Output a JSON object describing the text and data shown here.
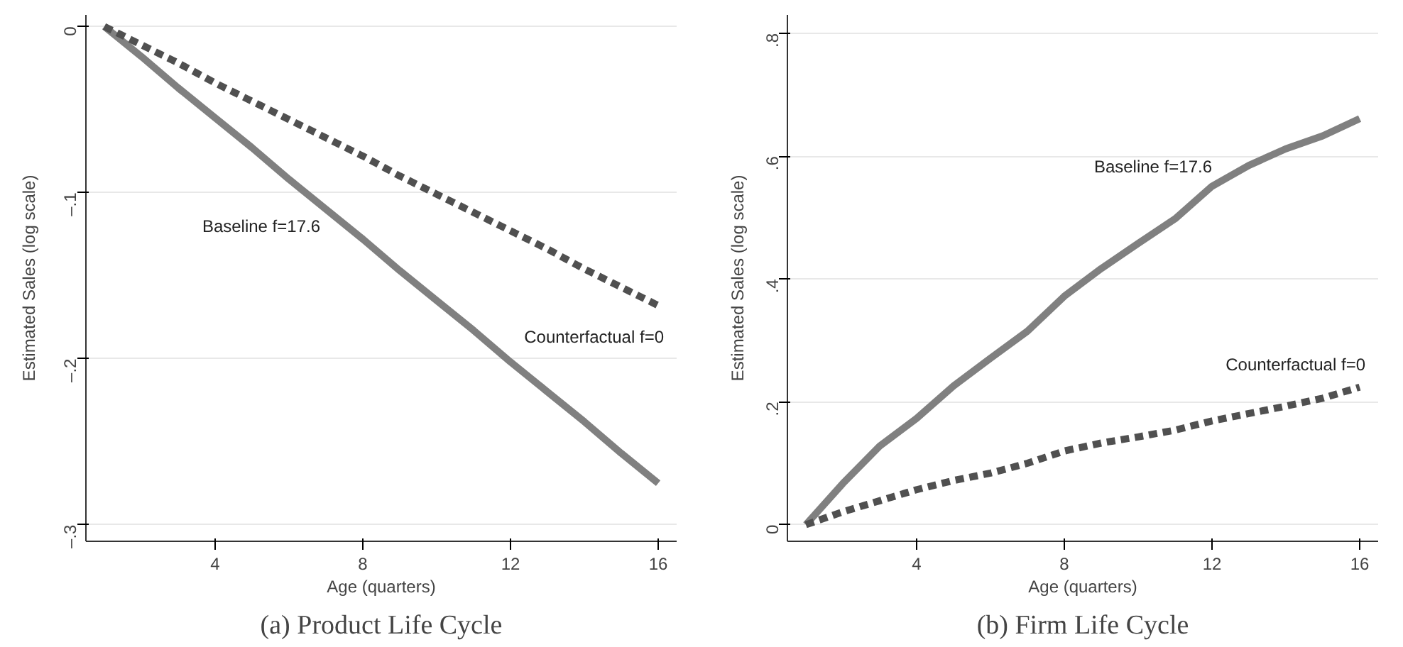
{
  "chart_data": [
    {
      "type": "line",
      "title": "(a) Product Life Cycle",
      "xlabel": "Age (quarters)",
      "ylabel": "Estimated Sales (log scale)",
      "x": [
        1,
        2,
        3,
        4,
        5,
        6,
        7,
        8,
        9,
        10,
        11,
        12,
        13,
        14,
        15,
        16
      ],
      "series": [
        {
          "name": "Baseline f=17.6",
          "color": "#808080",
          "line_style": "solid",
          "values": [
            0,
            -0.018,
            -0.037,
            -0.055,
            -0.073,
            -0.092,
            -0.11,
            -0.128,
            -0.147,
            -0.165,
            -0.183,
            -0.202,
            -0.22,
            -0.238,
            -0.257,
            -0.275
          ]
        },
        {
          "name": "Counterfactual f=0",
          "color": "#505050",
          "line_style": "dashed",
          "values": [
            0,
            -0.011,
            -0.022,
            -0.034,
            -0.045,
            -0.056,
            -0.067,
            -0.078,
            -0.09,
            -0.101,
            -0.112,
            -0.123,
            -0.134,
            -0.146,
            -0.157,
            -0.168
          ]
        }
      ],
      "xlim": [
        0.5,
        16.5
      ],
      "xticks": [
        4,
        8,
        12,
        16
      ],
      "ylim": [
        -0.31,
        0.007
      ],
      "yticks": [
        {
          "value": 0,
          "label": "0"
        },
        {
          "value": -0.1,
          "label": "–.1"
        },
        {
          "value": -0.2,
          "label": "–.2"
        },
        {
          "value": -0.3,
          "label": "–.3"
        }
      ],
      "grid": "y",
      "legend": false
    },
    {
      "type": "line",
      "title": "(b) Firm Life Cycle",
      "xlabel": "Age (quarters)",
      "ylabel": "Estimated Sales (log scale)",
      "x": [
        1,
        2,
        3,
        4,
        5,
        6,
        7,
        8,
        9,
        10,
        11,
        12,
        13,
        14,
        15,
        16
      ],
      "series": [
        {
          "name": "Baseline f=17.6",
          "color": "#808080",
          "line_style": "solid",
          "values": [
            0,
            0.067,
            0.128,
            0.173,
            0.226,
            0.271,
            0.315,
            0.372,
            0.417,
            0.458,
            0.498,
            0.551,
            0.585,
            0.612,
            0.633,
            0.661
          ]
        },
        {
          "name": "Counterfactual f=0",
          "color": "#505050",
          "line_style": "dashed",
          "values": [
            0,
            0.021,
            0.039,
            0.057,
            0.072,
            0.084,
            0.1,
            0.12,
            0.133,
            0.143,
            0.154,
            0.169,
            0.181,
            0.193,
            0.206,
            0.224
          ]
        }
      ],
      "xlim": [
        0.5,
        16.5
      ],
      "xticks": [
        4,
        8,
        12,
        16
      ],
      "ylim": [
        -0.027,
        0.83
      ],
      "yticks": [
        {
          "value": 0,
          "label": "0"
        },
        {
          "value": 0.2,
          "label": ".2"
        },
        {
          "value": 0.4,
          "label": ".4"
        },
        {
          "value": 0.6,
          "label": ".6"
        },
        {
          "value": 0.8,
          "label": ".8"
        }
      ],
      "grid": "y",
      "legend": false
    }
  ]
}
